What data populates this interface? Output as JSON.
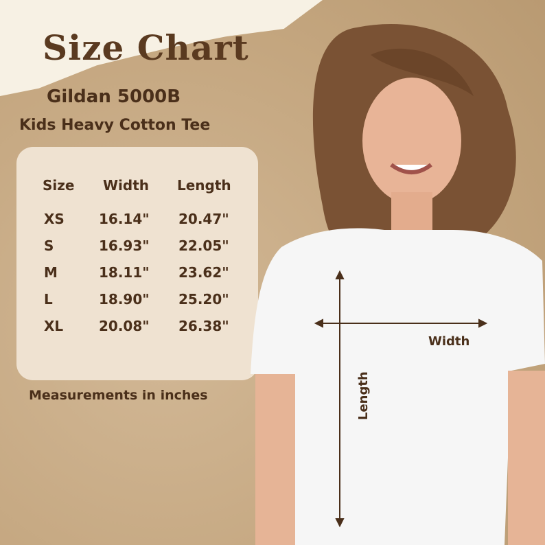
{
  "title": "Size Chart",
  "model": "Gildan 5000B",
  "product": "Kids Heavy Cotton Tee",
  "table": {
    "headers": [
      "Size",
      "Width",
      "Length"
    ],
    "rows": [
      [
        "XS",
        "16.14\"",
        "20.47\""
      ],
      [
        "S",
        "16.93\"",
        "22.05\""
      ],
      [
        "M",
        "18.11\"",
        "23.62\""
      ],
      [
        "L",
        "18.90\"",
        "25.20\""
      ],
      [
        "XL",
        "20.08\"",
        "26.38\""
      ]
    ]
  },
  "footnote": "Measurements in inches",
  "diagram": {
    "width_label": "Width",
    "length_label": "Length"
  }
}
